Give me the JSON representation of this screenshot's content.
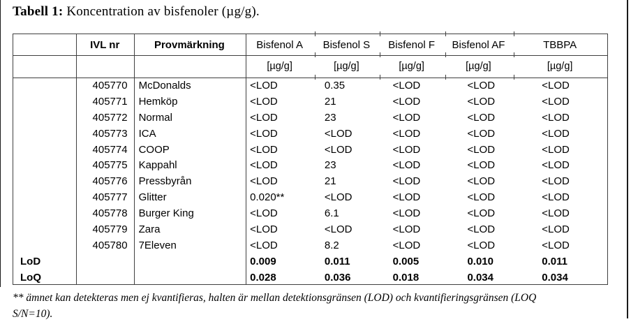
{
  "page": {
    "title_prefix": "Tabell 1:",
    "title_rest": " Koncentration av bisfenoler (µg/g)."
  },
  "table": {
    "columns": [
      "",
      "IVL nr",
      "Provmärkning",
      "Bisfenol A",
      "Bisfenol S",
      "Bisfenol F",
      "Bisfenol AF",
      "TBBPA"
    ],
    "unit_label": "[µg/g]",
    "rows": [
      {
        "ivl": "405770",
        "name": "McDonalds",
        "values": [
          "<LOD",
          "0.35",
          "<LOD",
          "<LOD",
          "<LOD"
        ]
      },
      {
        "ivl": "405771",
        "name": "Hemköp",
        "values": [
          "<LOD",
          "21",
          "<LOD",
          "<LOD",
          "<LOD"
        ]
      },
      {
        "ivl": "405772",
        "name": "Normal",
        "values": [
          "<LOD",
          "23",
          "<LOD",
          "<LOD",
          "<LOD"
        ]
      },
      {
        "ivl": "405773",
        "name": "ICA",
        "values": [
          "<LOD",
          "<LOD",
          "<LOD",
          "<LOD",
          "<LOD"
        ]
      },
      {
        "ivl": "405774",
        "name": "COOP",
        "values": [
          "<LOD",
          "<LOD",
          "<LOD",
          "<LOD",
          "<LOD"
        ]
      },
      {
        "ivl": "405775",
        "name": "Kappahl",
        "values": [
          "<LOD",
          "23",
          "<LOD",
          "<LOD",
          "<LOD"
        ]
      },
      {
        "ivl": "405776",
        "name": "Pressbyrån",
        "values": [
          "<LOD",
          "21",
          "<LOD",
          "<LOD",
          "<LOD"
        ]
      },
      {
        "ivl": "405777",
        "name": "Glitter",
        "values": [
          "0.020**",
          "<LOD",
          "<LOD",
          "<LOD",
          "<LOD"
        ]
      },
      {
        "ivl": "405778",
        "name": "Burger King",
        "values": [
          "<LOD",
          "6.1",
          "<LOD",
          "<LOD",
          "<LOD"
        ]
      },
      {
        "ivl": "405779",
        "name": "Zara",
        "values": [
          "<LOD",
          "<LOD",
          "<LOD",
          "<LOD",
          "<LOD"
        ]
      },
      {
        "ivl": "405780",
        "name": "7Eleven",
        "values": [
          "<LOD",
          "8.2",
          "<LOD",
          "<LOD",
          "<LOD"
        ]
      }
    ],
    "lod_row": {
      "label": "LoD",
      "values": [
        "0.009",
        "0.011",
        "0.005",
        "0.010",
        "0.011"
      ]
    },
    "loq_row": {
      "label": "LoQ",
      "values": [
        "0.028",
        "0.036",
        "0.018",
        "0.034",
        "0.034"
      ]
    }
  },
  "footnote": {
    "line1": "** ämnet kan detekteras men ej kvantifieras, halten är mellan detektionsgränsen (LOD) och kvantifieringsgränsen (LOQ",
    "line2": "S/N=10)."
  }
}
